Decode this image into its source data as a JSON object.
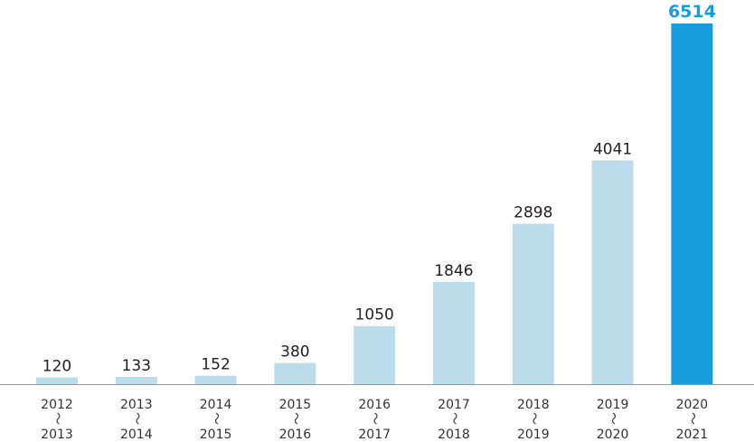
{
  "chart_data": {
    "type": "bar",
    "title": "",
    "xlabel": "",
    "ylabel": "",
    "ylim": [
      0,
      6514
    ],
    "grid": false,
    "categories": [
      {
        "start": "2012",
        "sep": "～",
        "end": "2013"
      },
      {
        "start": "2013",
        "sep": "～",
        "end": "2014"
      },
      {
        "start": "2014",
        "sep": "～",
        "end": "2015"
      },
      {
        "start": "2015",
        "sep": "～",
        "end": "2016"
      },
      {
        "start": "2016",
        "sep": "～",
        "end": "2017"
      },
      {
        "start": "2017",
        "sep": "～",
        "end": "2018"
      },
      {
        "start": "2018",
        "sep": "～",
        "end": "2019"
      },
      {
        "start": "2019",
        "sep": "～",
        "end": "2020"
      },
      {
        "start": "2020",
        "sep": "～",
        "end": "2021"
      }
    ],
    "values": [
      120,
      133,
      152,
      380,
      1050,
      1846,
      2898,
      4041,
      6514
    ],
    "highlight_index": 8
  },
  "colors": {
    "bar": "#bcdcec",
    "bar_highlight": "#189cdc",
    "value_text": "#222222",
    "value_text_highlight": "#189cdc",
    "axis": "#999999"
  }
}
